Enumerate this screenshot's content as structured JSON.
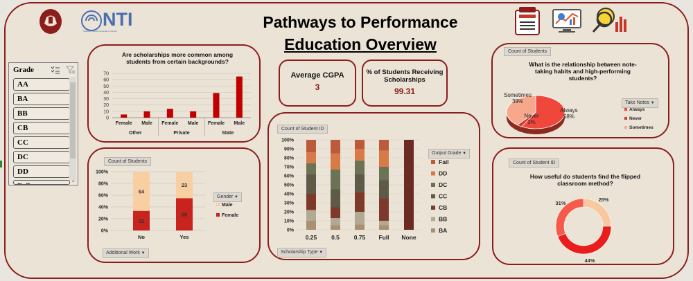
{
  "dashboard": {
    "title_line1": "Pathways to Performance",
    "title_line2": "Education Overview",
    "logo_text": "NTI",
    "logo_subtext": "National Telecommunication Institute"
  },
  "header_icons": [
    "report-icon",
    "chart-screen-icon",
    "insight-icon"
  ],
  "slicer": {
    "header": "Grade",
    "items": [
      "AA",
      "BA",
      "BB",
      "CB",
      "CC",
      "DC",
      "DD",
      "Fail"
    ]
  },
  "kpis": [
    {
      "label": "Average CGPA",
      "value": "3"
    },
    {
      "label": "% of Students Receiving Scholarships",
      "value": "99.31"
    }
  ],
  "colors": {
    "border": "#8b1d1d",
    "bar_red": "#c00000",
    "female": "#c8231e",
    "male": "#f8cfa3",
    "background": "#ebe3d6"
  },
  "charts": {
    "scholarship": {
      "chart_data": {
        "type": "bar",
        "title": "Are scholarships more common among students from certain backgrounds?",
        "groups": [
          "Other",
          "Private",
          "State"
        ],
        "categories": [
          "Female",
          "Male",
          "Female",
          "Male",
          "Female",
          "Male"
        ],
        "values": [
          5,
          10,
          14,
          10,
          39,
          65
        ],
        "ylim": [
          0,
          70
        ],
        "yticks": [
          "0",
          "10",
          "20",
          "30",
          "40",
          "50",
          "60",
          "70"
        ]
      }
    },
    "additional_work": {
      "tag": "Count of Students",
      "dropdown": "Additional Work",
      "legend_title": "Gender",
      "chart_data": {
        "type": "bar",
        "stacked": true,
        "percent": true,
        "categories": [
          "No",
          "Yes"
        ],
        "series": [
          {
            "name": "Male",
            "values": [
              64,
              23
            ]
          },
          {
            "name": "Female",
            "values": [
              32,
              28
            ]
          }
        ],
        "yticks": [
          "0%",
          "20%",
          "40%",
          "60%",
          "80%",
          "100%"
        ]
      }
    },
    "output_grade": {
      "tag": "Count of Student ID",
      "dropdown": "Scholarship Type",
      "legend_title": "Output Grade",
      "chart_data": {
        "type": "bar",
        "stacked": true,
        "percent": true,
        "categories": [
          "0.25",
          "0.5",
          "0.75",
          "Full",
          "None"
        ],
        "yticks": [
          "0%",
          "10%",
          "20%",
          "30%",
          "40%",
          "50%",
          "60%",
          "70%",
          "80%",
          "90%",
          "100%"
        ],
        "series": [
          {
            "name": "BA",
            "values": [
              10,
              5,
              6,
              5,
              0
            ]
          },
          {
            "name": "BB",
            "values": [
              12,
              8,
              14,
              5,
              0
            ]
          },
          {
            "name": "CB",
            "values": [
              18,
              12,
              22,
              25,
              0
            ]
          },
          {
            "name": "CC",
            "values": [
              22,
              20,
              20,
              20,
              0
            ]
          },
          {
            "name": "DC",
            "values": [
              12,
              22,
              15,
              15,
              0
            ]
          },
          {
            "name": "DD",
            "values": [
              12,
              18,
              13,
              18,
              0
            ]
          },
          {
            "name": "Fail",
            "values": [
              14,
              15,
              10,
              12,
              100
            ]
          }
        ]
      }
    },
    "notes": {
      "tag": "Count of Students",
      "title": "What is the relationship between note-taking habits and high-performing students?",
      "legend_title": "Take Notes",
      "chart_data": {
        "type": "pie",
        "labels": [
          "Always",
          "Never",
          "Sometimes"
        ],
        "values": [
          58,
          3,
          39
        ],
        "value_labels": [
          "Always\n58%",
          "Never\n3%",
          "Sometimes\n39%"
        ]
      }
    },
    "flipped": {
      "tag": "Count of Student ID",
      "title": "How useful do students find the flipped classroom method?",
      "chart_data": {
        "type": "pie",
        "donut": true,
        "values": [
          25,
          44,
          31
        ],
        "value_labels": [
          "25%",
          "44%",
          "31%"
        ]
      }
    }
  }
}
